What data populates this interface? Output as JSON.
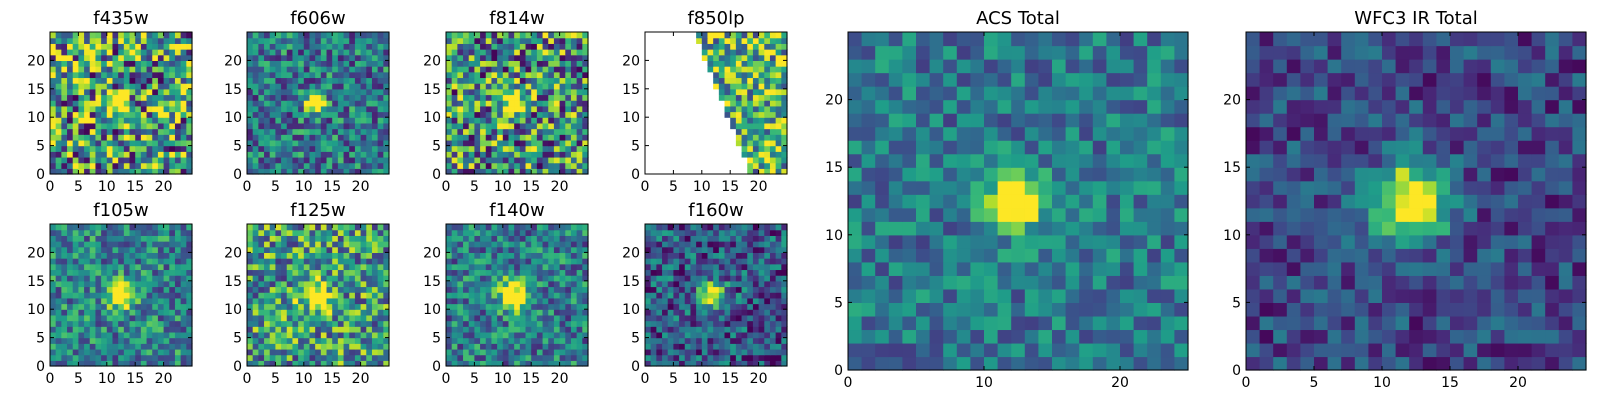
{
  "chart_data": [
    {
      "type": "heatmap",
      "title": "f435w",
      "colormap": "viridis",
      "xlim": [
        0,
        25
      ],
      "ylim": [
        0,
        25
      ],
      "xticks": [
        0,
        5,
        10,
        15,
        20
      ],
      "yticks": [
        0,
        5,
        10,
        15,
        20
      ],
      "source": {
        "cx": 12,
        "cy": 12.5,
        "sigma": 1.2,
        "peak": 0.9
      },
      "noise": 0.55,
      "base": 0.55,
      "seed": 11
    },
    {
      "type": "heatmap",
      "title": "f606w",
      "colormap": "viridis",
      "xlim": [
        0,
        25
      ],
      "ylim": [
        0,
        25
      ],
      "xticks": [
        0,
        5,
        10,
        15,
        20
      ],
      "yticks": [
        0,
        5,
        10,
        15,
        20
      ],
      "source": {
        "cx": 12,
        "cy": 12.5,
        "sigma": 1.2,
        "peak": 0.9
      },
      "noise": 0.32,
      "base": 0.4,
      "seed": 23
    },
    {
      "type": "heatmap",
      "title": "f814w",
      "colormap": "viridis",
      "xlim": [
        0,
        25
      ],
      "ylim": [
        0,
        25
      ],
      "xticks": [
        0,
        5,
        10,
        15,
        20
      ],
      "yticks": [
        0,
        5,
        10,
        15,
        20
      ],
      "source": {
        "cx": 12,
        "cy": 12.5,
        "sigma": 1.4,
        "peak": 0.85
      },
      "noise": 0.5,
      "base": 0.5,
      "seed": 37
    },
    {
      "type": "heatmap",
      "title": "f850lp",
      "colormap": "viridis",
      "xlim": [
        0,
        25
      ],
      "ylim": [
        0,
        25
      ],
      "xticks": [
        0,
        5,
        10,
        15,
        20
      ],
      "yticks": [
        0,
        5,
        10,
        15,
        20
      ],
      "source": {
        "cx": 12,
        "cy": 12.5,
        "sigma": 1.3,
        "peak": 0.3
      },
      "noise": 0.45,
      "base": 0.65,
      "seed": 41,
      "masked_edge": {
        "x_at_top": 8,
        "x_at_bottom": 18
      }
    },
    {
      "type": "heatmap",
      "title": "f105w",
      "colormap": "viridis",
      "xlim": [
        0,
        25
      ],
      "ylim": [
        0,
        25
      ],
      "xticks": [
        0,
        5,
        10,
        15,
        20
      ],
      "yticks": [
        0,
        5,
        10,
        15,
        20
      ],
      "source": {
        "cx": 12.5,
        "cy": 12.5,
        "sigma": 1.5,
        "peak": 0.85
      },
      "noise": 0.3,
      "base": 0.45,
      "seed": 53
    },
    {
      "type": "heatmap",
      "title": "f125w",
      "colormap": "viridis",
      "xlim": [
        0,
        25
      ],
      "ylim": [
        0,
        25
      ],
      "xticks": [
        0,
        5,
        10,
        15,
        20
      ],
      "yticks": [
        0,
        5,
        10,
        15,
        20
      ],
      "source": {
        "cx": 12,
        "cy": 12.5,
        "sigma": 1.8,
        "peak": 0.6
      },
      "noise": 0.4,
      "base": 0.55,
      "seed": 67
    },
    {
      "type": "heatmap",
      "title": "f140w",
      "colormap": "viridis",
      "xlim": [
        0,
        25
      ],
      "ylim": [
        0,
        25
      ],
      "xticks": [
        0,
        5,
        10,
        15,
        20
      ],
      "yticks": [
        0,
        5,
        10,
        15,
        20
      ],
      "source": {
        "cx": 12,
        "cy": 12.5,
        "sigma": 1.9,
        "peak": 0.75
      },
      "noise": 0.3,
      "base": 0.42,
      "seed": 71
    },
    {
      "type": "heatmap",
      "title": "f160w",
      "colormap": "viridis",
      "xlim": [
        0,
        25
      ],
      "ylim": [
        0,
        25
      ],
      "xticks": [
        0,
        5,
        10,
        15,
        20
      ],
      "yticks": [
        0,
        5,
        10,
        15,
        20
      ],
      "source": {
        "cx": 12,
        "cy": 12.5,
        "sigma": 1.6,
        "peak": 0.8
      },
      "noise": 0.3,
      "base": 0.28,
      "seed": 83
    },
    {
      "type": "heatmap",
      "title": "ACS Total",
      "colormap": "viridis",
      "xlim": [
        0,
        25
      ],
      "ylim": [
        0,
        25
      ],
      "xticks": [
        0,
        10,
        20
      ],
      "yticks": [
        0,
        5,
        10,
        15,
        20
      ],
      "source": {
        "cx": 12.3,
        "cy": 12.5,
        "sigma": 1.4,
        "peak": 0.9
      },
      "noise": 0.22,
      "base": 0.4,
      "seed": 97
    },
    {
      "type": "heatmap",
      "title": "WFC3 IR Total",
      "colormap": "viridis",
      "xlim": [
        0,
        25
      ],
      "ylim": [
        0,
        25
      ],
      "xticks": [
        0,
        5,
        10,
        15,
        20
      ],
      "yticks": [
        0,
        5,
        10,
        15,
        20
      ],
      "source": {
        "cx": 12.2,
        "cy": 12.5,
        "sigma": 1.9,
        "peak": 0.9
      },
      "noise": 0.2,
      "base": 0.22,
      "seed": 101
    }
  ]
}
